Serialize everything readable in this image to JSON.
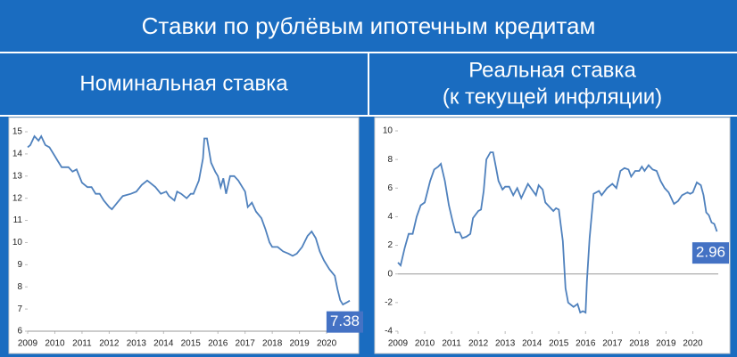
{
  "header": {
    "title": "Ставки по рублёвым ипотечным кредитам"
  },
  "chart_data": [
    {
      "type": "line",
      "title": [
        "Номинальная ставка"
      ],
      "x": [
        2009.0,
        2009.1,
        2009.25,
        2009.4,
        2009.5,
        2009.65,
        2009.8,
        2010.0,
        2010.1,
        2010.25,
        2010.5,
        2010.65,
        2010.8,
        2011.0,
        2011.2,
        2011.35,
        2011.5,
        2011.65,
        2011.8,
        2012.0,
        2012.1,
        2012.3,
        2012.5,
        2012.8,
        2013.0,
        2013.2,
        2013.4,
        2013.5,
        2013.7,
        2013.9,
        2014.1,
        2014.2,
        2014.4,
        2014.5,
        2014.65,
        2014.85,
        2015.0,
        2015.1,
        2015.3,
        2015.45,
        2015.5,
        2015.6,
        2015.75,
        2015.9,
        2016.0,
        2016.1,
        2016.2,
        2016.3,
        2016.45,
        2016.6,
        2016.75,
        2016.9,
        2017.0,
        2017.1,
        2017.25,
        2017.4,
        2017.6,
        2017.75,
        2017.9,
        2018.0,
        2018.2,
        2018.4,
        2018.6,
        2018.75,
        2018.9,
        2019.1,
        2019.3,
        2019.45,
        2019.6,
        2019.75,
        2019.9,
        2020.1,
        2020.3,
        2020.4,
        2020.5,
        2020.6,
        2020.75,
        2020.85
      ],
      "series": [
        {
          "color": "#4f81bd",
          "values": [
            14.3,
            14.4,
            14.8,
            14.6,
            14.8,
            14.4,
            14.3,
            13.9,
            13.7,
            13.4,
            13.4,
            13.2,
            13.3,
            12.7,
            12.5,
            12.5,
            12.2,
            12.2,
            11.9,
            11.6,
            11.5,
            11.8,
            12.1,
            12.2,
            12.3,
            12.6,
            12.8,
            12.7,
            12.5,
            12.2,
            12.3,
            12.1,
            11.9,
            12.3,
            12.2,
            12.0,
            12.2,
            12.2,
            12.8,
            13.8,
            14.7,
            14.7,
            13.6,
            13.2,
            13.0,
            12.5,
            12.9,
            12.2,
            13.0,
            13.0,
            12.8,
            12.5,
            12.3,
            11.6,
            11.8,
            11.4,
            11.1,
            10.6,
            10.0,
            9.8,
            9.8,
            9.6,
            9.5,
            9.4,
            9.5,
            9.8,
            10.3,
            10.5,
            10.2,
            9.6,
            9.2,
            8.8,
            8.5,
            7.9,
            7.4,
            7.2,
            7.3,
            7.38
          ]
        }
      ],
      "label_color": "#4472c4",
      "xlim": [
        2009,
        2020.95
      ],
      "xticks": [
        2009,
        2010,
        2011,
        2012,
        2013,
        2014,
        2015,
        2016,
        2017,
        2018,
        2019,
        2020
      ],
      "ylim": [
        6,
        15
      ],
      "yticks": [
        6,
        7,
        8,
        9,
        10,
        11,
        12,
        13,
        14,
        15
      ]
    },
    {
      "type": "line",
      "title": [
        "Реальная ставка",
        "(к текущей инфляции)"
      ],
      "x": [
        2009.0,
        2009.1,
        2009.25,
        2009.4,
        2009.55,
        2009.7,
        2009.85,
        2010.0,
        2010.2,
        2010.35,
        2010.5,
        2010.6,
        2010.75,
        2010.9,
        2011.05,
        2011.15,
        2011.3,
        2011.4,
        2011.55,
        2011.7,
        2011.8,
        2012.0,
        2012.1,
        2012.2,
        2012.3,
        2012.45,
        2012.55,
        2012.65,
        2012.75,
        2012.9,
        2013.0,
        2013.15,
        2013.3,
        2013.45,
        2013.6,
        2013.75,
        2013.85,
        2014.0,
        2014.15,
        2014.25,
        2014.4,
        2014.5,
        2014.65,
        2014.8,
        2014.9,
        2015.0,
        2015.15,
        2015.25,
        2015.35,
        2015.55,
        2015.7,
        2015.8,
        2015.9,
        2016.0,
        2016.05,
        2016.15,
        2016.3,
        2016.5,
        2016.6,
        2016.8,
        2017.0,
        2017.15,
        2017.3,
        2017.45,
        2017.6,
        2017.7,
        2017.85,
        2018.0,
        2018.1,
        2018.2,
        2018.35,
        2018.5,
        2018.65,
        2018.8,
        2018.95,
        2019.1,
        2019.3,
        2019.45,
        2019.6,
        2019.8,
        2019.9,
        2020.0,
        2020.15,
        2020.3,
        2020.4,
        2020.5,
        2020.6,
        2020.7,
        2020.8,
        2020.9
      ],
      "series": [
        {
          "color": "#4f81bd",
          "values": [
            0.8,
            0.6,
            1.8,
            2.8,
            2.8,
            4.0,
            4.8,
            5.0,
            6.5,
            7.3,
            7.5,
            7.7,
            6.5,
            4.8,
            3.6,
            2.9,
            2.9,
            2.5,
            2.6,
            2.8,
            3.9,
            4.4,
            4.5,
            5.8,
            8.0,
            8.5,
            8.5,
            7.5,
            6.5,
            5.9,
            6.1,
            6.1,
            5.5,
            6.0,
            5.3,
            5.9,
            6.3,
            5.9,
            5.5,
            6.2,
            5.9,
            5.0,
            4.7,
            4.4,
            4.6,
            4.5,
            2.3,
            -1.0,
            -2.0,
            -2.3,
            -2.1,
            -2.7,
            -2.6,
            -2.7,
            -0.5,
            2.5,
            5.6,
            5.8,
            5.5,
            6.0,
            6.3,
            6.0,
            7.2,
            7.4,
            7.3,
            6.8,
            7.2,
            7.2,
            7.5,
            7.2,
            7.6,
            7.3,
            7.2,
            6.5,
            6.0,
            5.7,
            4.9,
            5.1,
            5.5,
            5.7,
            5.6,
            5.7,
            6.4,
            6.2,
            5.5,
            4.3,
            4.1,
            3.6,
            3.5,
            2.96
          ]
        }
      ],
      "label_color": "#4472c4",
      "xlim": [
        2009,
        2020.95
      ],
      "xticks": [
        2009,
        2010,
        2011,
        2012,
        2013,
        2014,
        2015,
        2016,
        2017,
        2018,
        2019,
        2020
      ],
      "ylim": [
        -4,
        10
      ],
      "yticks": [
        -4,
        -2,
        0,
        2,
        4,
        6,
        8,
        10
      ]
    }
  ]
}
